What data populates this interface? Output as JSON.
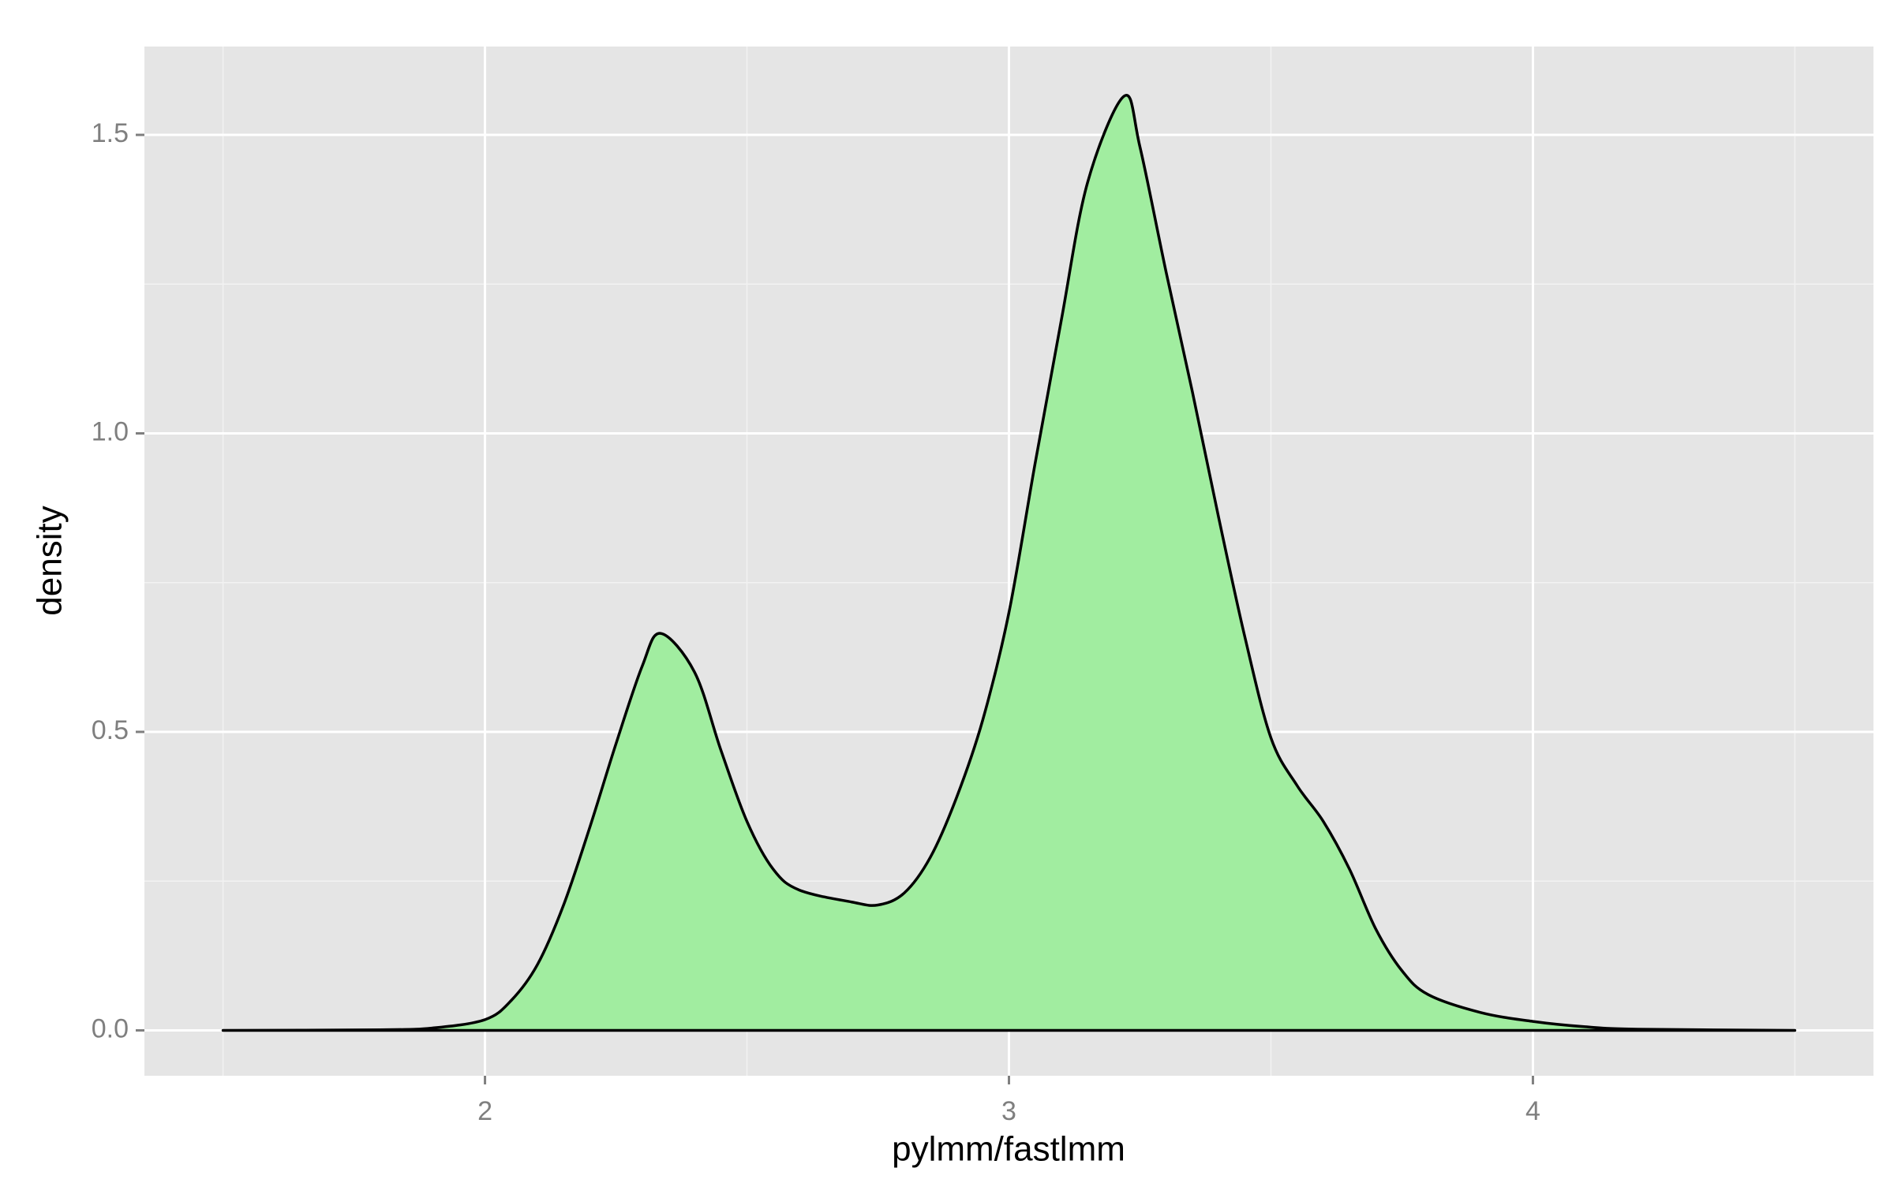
{
  "chart_data": {
    "type": "density",
    "x_label": "pylmm/fastlmm",
    "y_label": "density",
    "x": [
      1.5,
      1.8,
      1.9,
      2.0,
      2.05,
      2.1,
      2.15,
      2.2,
      2.25,
      2.3,
      2.335,
      2.4,
      2.45,
      2.5,
      2.55,
      2.6,
      2.7,
      2.75,
      2.8,
      2.85,
      2.9,
      2.95,
      3.0,
      3.05,
      3.1,
      3.15,
      3.22,
      3.25,
      3.3,
      3.35,
      3.4,
      3.45,
      3.5,
      3.55,
      3.6,
      3.65,
      3.7,
      3.75,
      3.8,
      3.9,
      4.0,
      4.1,
      4.2,
      4.5
    ],
    "values": [
      0,
      0.001,
      0.004,
      0.018,
      0.05,
      0.11,
      0.21,
      0.34,
      0.48,
      0.61,
      0.665,
      0.6,
      0.47,
      0.35,
      0.27,
      0.235,
      0.215,
      0.21,
      0.23,
      0.29,
      0.39,
      0.52,
      0.7,
      0.95,
      1.19,
      1.42,
      1.565,
      1.48,
      1.27,
      1.07,
      0.86,
      0.66,
      0.49,
      0.41,
      0.35,
      0.27,
      0.17,
      0.1,
      0.06,
      0.03,
      0.015,
      0.006,
      0.002,
      0
    ],
    "fill": "#a1eda0",
    "line_color": "#000000",
    "xlim": [
      1.35,
      4.65
    ],
    "xticks": [
      2,
      3,
      4
    ],
    "ylim": [
      -0.076,
      1.648
    ],
    "yticks": [
      {
        "value": 0,
        "label": "0.0"
      },
      {
        "value": 0.5,
        "label": "0.5"
      },
      {
        "value": 1,
        "label": "1.0"
      },
      {
        "value": 1.5,
        "label": "1.5"
      }
    ],
    "grid": true
  }
}
